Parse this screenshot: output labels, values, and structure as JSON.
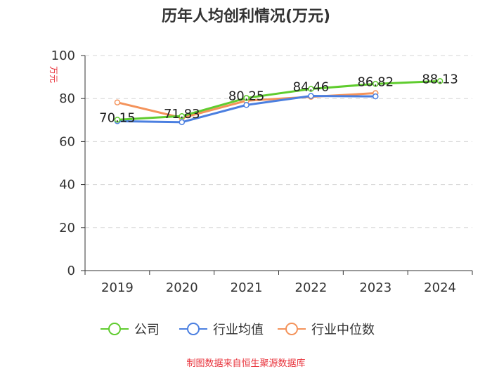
{
  "chart_data": {
    "type": "line",
    "title": "历年人均创利情况(万元)",
    "ylabel": "万元",
    "xlabel": "",
    "categories": [
      "2019",
      "2020",
      "2021",
      "2022",
      "2023",
      "2024"
    ],
    "ylim": [
      0,
      100
    ],
    "yticks": [
      0,
      20,
      40,
      60,
      80,
      100
    ],
    "grid": true,
    "legend_position": "bottom",
    "series": [
      {
        "name": "公司",
        "color": "#5fcc2e",
        "values": [
          70.15,
          71.83,
          80.25,
          84.46,
          86.82,
          88.13
        ],
        "labels": [
          "70.15",
          "71.83",
          "80.25",
          "84.46",
          "86.82",
          "88.13"
        ]
      },
      {
        "name": "行业均值",
        "color": "#4b7fe0",
        "values": [
          69.5,
          69.0,
          77.0,
          81.2,
          81.0,
          null
        ]
      },
      {
        "name": "行业中位数",
        "color": "#f4935b",
        "values": [
          78.2,
          71.0,
          79.0,
          80.8,
          82.5,
          null
        ]
      }
    ],
    "source": "制图数据来自恒生聚源数据库"
  }
}
